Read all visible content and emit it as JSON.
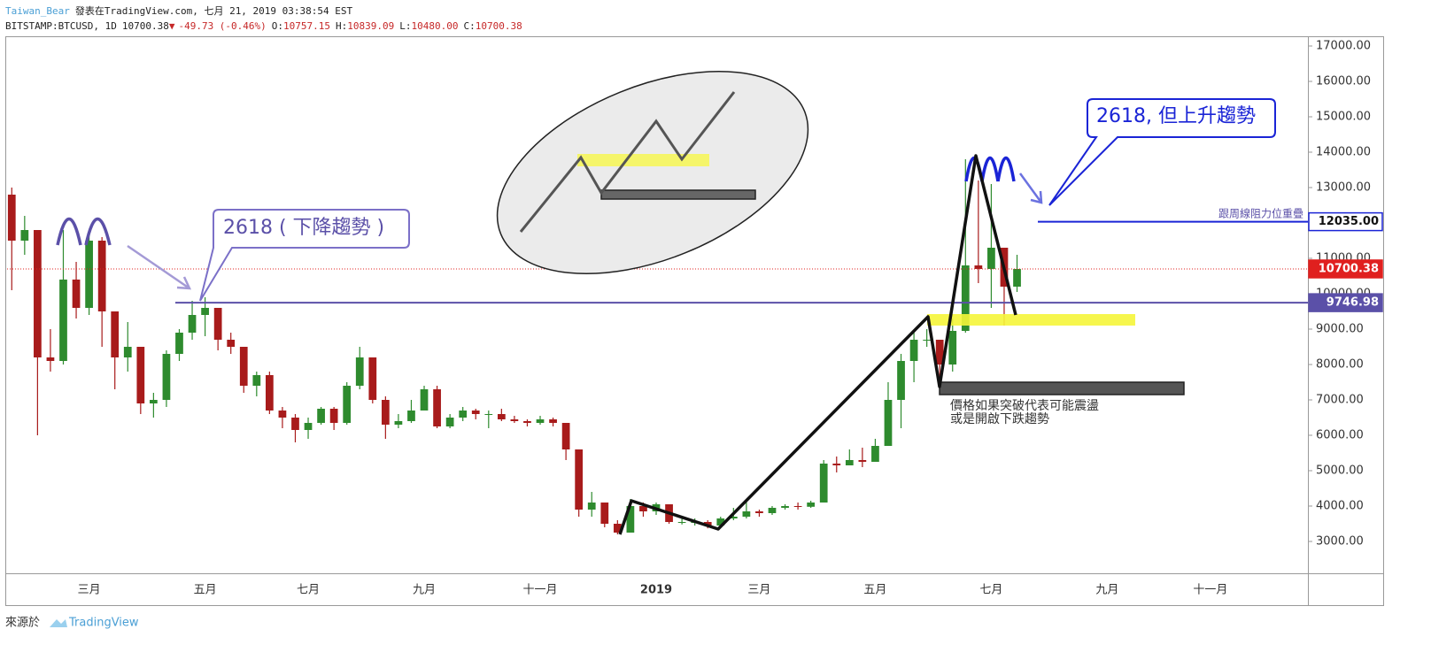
{
  "header": {
    "user": "Taiwan_Bear",
    "published": "發表在TradingView.com, 七月 21, 2019 03:38:54 EST",
    "symbol": "BITSTAMP:BTCUSD, 1D",
    "last": "10700.38",
    "change_arrow": "▼",
    "change": "-49.73 (-0.46%)",
    "ohlc": [
      {
        "label": "O:",
        "value": "10757.15"
      },
      {
        "label": "H:",
        "value": "10839.09"
      },
      {
        "label": "L:",
        "value": "10480.00"
      },
      {
        "label": "C:",
        "value": "10700.38"
      }
    ]
  },
  "footer": {
    "source": "來源於",
    "brand": "TradingView"
  },
  "chart_data": {
    "type": "candlestick",
    "categories": [
      null,
      null,
      null,
      null,
      null,
      null,
      "三月",
      null,
      null,
      null,
      null,
      null,
      null,
      null,
      null,
      "五月",
      null,
      null,
      null,
      null,
      null,
      null,
      null,
      "七月",
      null,
      null,
      null,
      null,
      null,
      null,
      null,
      null,
      "九月",
      null,
      null,
      null,
      null,
      null,
      null,
      null,
      null,
      "十一月",
      null,
      null,
      null,
      null,
      null,
      null,
      null,
      null,
      "2019",
      null,
      null,
      null,
      null,
      null,
      null,
      null,
      "三月",
      null,
      null,
      null,
      null,
      null,
      null,
      null,
      null,
      "五月",
      null,
      null,
      null,
      null,
      null,
      null,
      null,
      null,
      "七月",
      null,
      null,
      null,
      null,
      null,
      null,
      null,
      null,
      "九月",
      null,
      null,
      null,
      null,
      null,
      null,
      null,
      "十一月",
      null,
      null,
      null,
      null,
      null,
      null,
      null
    ],
    "open": [
      12800,
      11500,
      11800,
      8200,
      8100,
      10400,
      9600,
      11500,
      9500,
      8200,
      8500,
      6900,
      7000,
      8300,
      8900,
      9400,
      9600,
      8700,
      8500,
      7400,
      7700,
      6700,
      6500,
      6150,
      6350,
      6750,
      6350,
      7400,
      8200,
      7000,
      6300,
      6400,
      6700,
      7300,
      6250,
      6500,
      6700,
      6600,
      6600,
      6450,
      6400,
      6350,
      6450,
      6350,
      5600,
      3900,
      4100,
      3500,
      3250,
      4000,
      3850,
      4050,
      3550,
      3550,
      3550,
      3450,
      3650,
      3700,
      3850,
      3800,
      3950,
      4000,
      3980,
      4100,
      5200,
      5150,
      5300,
      5250,
      5700,
      7000,
      8100,
      8700,
      8700,
      8000,
      8950,
      10800,
      10700,
      11300,
      10200,
      null,
      null,
      null,
      null,
      null,
      null,
      null,
      null,
      null,
      null,
      null,
      null,
      null,
      null,
      null,
      null,
      null,
      null,
      null,
      null,
      null,
      null
    ],
    "high": [
      13000,
      12200,
      11800,
      9000,
      11800,
      10900,
      11700,
      11600,
      9500,
      9200,
      8500,
      7200,
      8400,
      9000,
      9800,
      9900,
      9600,
      8900,
      8500,
      7800,
      7800,
      6800,
      6600,
      6500,
      6800,
      6800,
      7500,
      8500,
      8200,
      7100,
      6600,
      7000,
      7400,
      7400,
      6600,
      6800,
      6750,
      6700,
      6750,
      6550,
      6450,
      6550,
      6500,
      6350,
      5600,
      4400,
      4100,
      3600,
      4200,
      4100,
      4100,
      4050,
      3700,
      3650,
      3600,
      3700,
      3950,
      4200,
      3900,
      4000,
      4050,
      4100,
      4150,
      5300,
      5400,
      5600,
      5650,
      5900,
      7500,
      8300,
      8900,
      9000,
      8700,
      9300,
      13800,
      13200,
      13100,
      11300,
      11100,
      null,
      null,
      null,
      null,
      null,
      null,
      null,
      null,
      null,
      null,
      null,
      null,
      null,
      null,
      null,
      null,
      null,
      null,
      null,
      null,
      null,
      null
    ],
    "low": [
      10100,
      11100,
      6000,
      7800,
      8000,
      9300,
      9400,
      8500,
      7300,
      7800,
      6600,
      6500,
      6800,
      8100,
      8700,
      8800,
      8400,
      8300,
      7200,
      7100,
      6600,
      6200,
      5800,
      5900,
      6300,
      6150,
      6300,
      7300,
      6900,
      5900,
      6200,
      6350,
      6700,
      6200,
      6200,
      6400,
      6450,
      6200,
      6400,
      6350,
      6250,
      6300,
      6250,
      5300,
      3700,
      3700,
      3400,
      3200,
      3250,
      3700,
      3750,
      3500,
      3480,
      3450,
      3370,
      3400,
      3600,
      3650,
      3700,
      3750,
      3900,
      3900,
      3950,
      4100,
      4950,
      5150,
      5100,
      5250,
      5700,
      6200,
      7500,
      8500,
      7500,
      7800,
      8900,
      10300,
      9600,
      9100,
      10050,
      null,
      null,
      null,
      null,
      null,
      null,
      null,
      null,
      null,
      null,
      null,
      null,
      null,
      null,
      null,
      null,
      null,
      null,
      null,
      null,
      null,
      null
    ],
    "close": [
      11500,
      11800,
      8200,
      8100,
      10400,
      9600,
      11500,
      9500,
      8200,
      8500,
      6900,
      7000,
      8300,
      8900,
      9400,
      9600,
      8700,
      8500,
      7400,
      7700,
      6700,
      6500,
      6150,
      6350,
      6750,
      6350,
      7400,
      8200,
      7000,
      6300,
      6400,
      6700,
      7300,
      6250,
      6500,
      6700,
      6600,
      6600,
      6450,
      6400,
      6350,
      6450,
      6350,
      5600,
      3900,
      4100,
      3500,
      3250,
      4000,
      3850,
      4050,
      3550,
      3550,
      3550,
      3450,
      3650,
      3700,
      3850,
      3800,
      3950,
      4000,
      3980,
      4100,
      5200,
      5150,
      5300,
      5250,
      5700,
      7000,
      8100,
      8700,
      8700,
      8000,
      8950,
      10800,
      10700,
      11300,
      10200,
      10700,
      null,
      null,
      null,
      null,
      null,
      null,
      null,
      null,
      null,
      null,
      null,
      null,
      null,
      null,
      null,
      null,
      null,
      null,
      null,
      null,
      null,
      null
    ],
    "up_color": "#2e8b2e",
    "down_color": "#a81b1b",
    "ylim": [
      2100,
      17250
    ],
    "yticks": [
      {
        "value": 3000,
        "label": "3000.00"
      },
      {
        "value": 4000,
        "label": "4000.00"
      },
      {
        "value": 5000,
        "label": "5000.00"
      },
      {
        "value": 6000,
        "label": "6000.00"
      },
      {
        "value": 7000,
        "label": "7000.00"
      },
      {
        "value": 8000,
        "label": "8000.00"
      },
      {
        "value": 9000,
        "label": "9000.00"
      },
      {
        "value": 10000,
        "label": "10000.00"
      },
      {
        "value": 11000,
        "label": "11000.00"
      },
      {
        "value": 12000,
        "label": "12000.00"
      },
      {
        "value": 13000,
        "label": "13000.00"
      },
      {
        "value": 14000,
        "label": "14000.00"
      },
      {
        "value": 15000,
        "label": "15000.00"
      },
      {
        "value": 16000,
        "label": "16000.00"
      },
      {
        "value": 17000,
        "label": "17000.00"
      }
    ],
    "price_lines": [
      {
        "value": 12035,
        "label": "12035.00",
        "color": "#1a24d6",
        "style": "solid",
        "badge": "outline"
      },
      {
        "value": 10700.38,
        "label": "10700.38",
        "color": "#e0201f",
        "style": "dotted",
        "badge": "filled"
      },
      {
        "value": 9746.98,
        "label": "9746.98",
        "color": "#5b50a8",
        "style": "solid",
        "badge": "filled"
      }
    ],
    "annotations": {
      "callout_down": "2618 ( 下降趨勢 )",
      "callout_up": "2618, 但上升趨勢",
      "resistance_note": "跟周線阻力位重疊",
      "breakdown_note": [
        "價格如果突破代表可能震盪",
        "或是開啟下跌趨勢"
      ]
    }
  }
}
